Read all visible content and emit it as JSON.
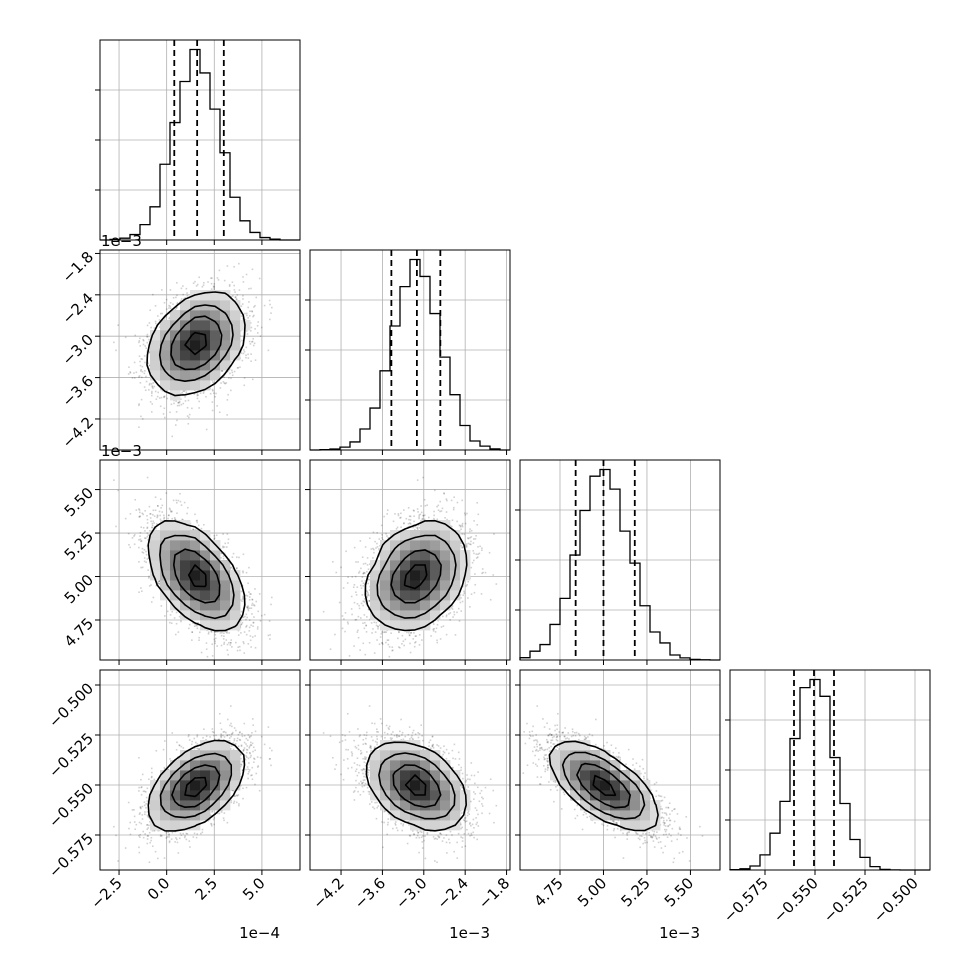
{
  "chart_data": {
    "type": "corner",
    "n_params": 4,
    "grid": true,
    "params": [
      {
        "range": [
          -3.5,
          7.0
        ],
        "ticks": [
          -2.5,
          0.0,
          2.5,
          5.0
        ],
        "tick_labels": [
          "−2.5",
          "0.0",
          "2.5",
          "5.0"
        ],
        "offset_label": "1e−4",
        "mean": 1.6,
        "sd": 1.2,
        "quantiles": [
          0.4,
          1.6,
          3.0
        ]
      },
      {
        "range": [
          -4.65,
          -1.75
        ],
        "ticks": [
          -4.2,
          -3.6,
          -3.0,
          -2.4,
          -1.8
        ],
        "tick_labels": [
          "−4.2",
          "−3.6",
          "−3.0",
          "−2.4",
          "−1.8"
        ],
        "offset_label": "1e−3",
        "mean": -3.1,
        "sd": 0.35,
        "quantiles": [
          -3.47,
          -3.1,
          -2.76
        ]
      },
      {
        "range": [
          4.52,
          5.67
        ],
        "ticks": [
          4.75,
          5.0,
          5.25,
          5.5
        ],
        "tick_labels": [
          "4.75",
          "5.00",
          "5.25",
          "5.50"
        ],
        "offset_label": "1e−3",
        "mean": 5.0,
        "sd": 0.15,
        "quantiles": [
          4.84,
          5.0,
          5.18
        ]
      },
      {
        "range": [
          -0.5925,
          -0.4925
        ],
        "ticks": [
          -0.575,
          -0.55,
          -0.525,
          -0.5
        ],
        "tick_labels": [
          "−0.575",
          "−0.550",
          "−0.525",
          "−0.500"
        ],
        "offset_label": "",
        "mean": -0.5505,
        "sd": 0.0105,
        "quantiles": [
          -0.5605,
          -0.5505,
          -0.5405
        ]
      }
    ],
    "correlations": [
      [
        1.0,
        0.35,
        -0.55,
        0.55
      ],
      [
        0.35,
        1.0,
        0.3,
        -0.4
      ],
      [
        -0.55,
        0.3,
        1.0,
        -0.7
      ],
      [
        0.55,
        -0.4,
        -0.7,
        1.0
      ]
    ]
  }
}
